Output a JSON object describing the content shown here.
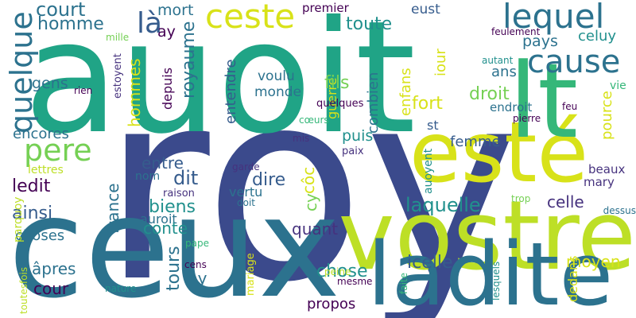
{
  "background": "#ffffff",
  "palette": {
    "navy": "#3b4a8c",
    "indigo": "#46327e",
    "purple": "#440154",
    "blue": "#365c8d",
    "steel": "#2c728e",
    "teal": "#21908d",
    "green": "#20a486",
    "seagreen": "#35b779",
    "lime": "#75d054",
    "yellowgreen": "#bddf26",
    "yellow": "#d8e219"
  },
  "words": [
    {
      "text": "roy",
      "color": "navy"
    },
    {
      "text": "auoit",
      "color": "green"
    },
    {
      "text": "ceux",
      "color": "steel"
    },
    {
      "text": "vostre",
      "color": "yellowgreen"
    },
    {
      "text": "ladite",
      "color": "steel"
    },
    {
      "text": "esté",
      "color": "yellow"
    },
    {
      "text": "lt",
      "color": "seagreen"
    },
    {
      "text": "ceste",
      "color": "yellow"
    },
    {
      "text": "lequel",
      "color": "steel"
    },
    {
      "text": "cause",
      "color": "steel"
    },
    {
      "text": "quelque",
      "color": "steel"
    },
    {
      "text": "pere",
      "color": "lime"
    },
    {
      "text": "là",
      "color": "blue"
    },
    {
      "text": "court",
      "color": "steel"
    },
    {
      "text": "homme",
      "color": "steel"
    },
    {
      "text": "mort",
      "color": "steel"
    },
    {
      "text": "toute",
      "color": "teal"
    },
    {
      "text": "ay",
      "color": "purple"
    },
    {
      "text": "royaume",
      "color": "steel"
    },
    {
      "text": "premier",
      "color": "purple"
    },
    {
      "text": "eust",
      "color": "blue"
    },
    {
      "text": "pays",
      "color": "steel"
    },
    {
      "text": "celuy",
      "color": "teal"
    },
    {
      "text": "mille",
      "color": "lime"
    },
    {
      "text": "feulement",
      "color": "purple"
    },
    {
      "text": "autant",
      "color": "teal"
    },
    {
      "text": "gens",
      "color": "steel"
    },
    {
      "text": "guerre",
      "color": "yellow"
    },
    {
      "text": "enfans",
      "color": "yellow"
    },
    {
      "text": "iour",
      "color": "yellow"
    },
    {
      "text": "ans",
      "color": "steel"
    },
    {
      "text": "entendre",
      "color": "blue"
    },
    {
      "text": "voulu",
      "color": "steel"
    },
    {
      "text": "monde",
      "color": "steel"
    },
    {
      "text": "depuis",
      "color": "purple"
    },
    {
      "text": "estoyent",
      "color": "indigo"
    },
    {
      "text": "rien",
      "color": "purple"
    },
    {
      "text": "hommes",
      "color": "yellow"
    },
    {
      "text": "fils",
      "color": "lime"
    },
    {
      "text": "combien",
      "color": "steel"
    },
    {
      "text": "fort",
      "color": "yellow"
    },
    {
      "text": "droit",
      "color": "lime"
    },
    {
      "text": "endroit",
      "color": "steel"
    },
    {
      "text": "feu",
      "color": "purple"
    },
    {
      "text": "vie",
      "color": "seagreen"
    },
    {
      "text": "quelques",
      "color": "purple"
    },
    {
      "text": "cœurs",
      "color": "seagreen"
    },
    {
      "text": "pierre",
      "color": "purple"
    },
    {
      "text": "pource",
      "color": "yellow"
    },
    {
      "text": "encores",
      "color": "steel"
    },
    {
      "text": "puis",
      "color": "teal"
    },
    {
      "text": "st",
      "color": "blue"
    },
    {
      "text": "mis",
      "color": "indigo"
    },
    {
      "text": "paix",
      "color": "indigo"
    },
    {
      "text": "femme",
      "color": "blue"
    },
    {
      "text": "lettres",
      "color": "yellowgreen"
    },
    {
      "text": "entre",
      "color": "blue"
    },
    {
      "text": "dit",
      "color": "blue"
    },
    {
      "text": "dire",
      "color": "blue"
    },
    {
      "text": "nom",
      "color": "steel"
    },
    {
      "text": "ledit",
      "color": "purple"
    },
    {
      "text": "ainsi",
      "color": "blue"
    },
    {
      "text": "france",
      "color": "steel"
    },
    {
      "text": "garde",
      "color": "indigo"
    },
    {
      "text": "vertu",
      "color": "steel"
    },
    {
      "text": "cy",
      "color": "lime"
    },
    {
      "text": "côc",
      "color": "yellow"
    },
    {
      "text": "auoyent",
      "color": "teal"
    },
    {
      "text": "laquelle",
      "color": "teal"
    },
    {
      "text": "celle",
      "color": "indigo"
    },
    {
      "text": "beaux",
      "color": "indigo"
    },
    {
      "text": "mary",
      "color": "indigo"
    },
    {
      "text": "raison",
      "color": "indigo"
    },
    {
      "text": "biens",
      "color": "teal"
    },
    {
      "text": "doit",
      "color": "steel"
    },
    {
      "text": "trop",
      "color": "lime"
    },
    {
      "text": "dessus",
      "color": "steel"
    },
    {
      "text": "choses",
      "color": "steel"
    },
    {
      "text": "auroit",
      "color": "steel"
    },
    {
      "text": "conte",
      "color": "teal"
    },
    {
      "text": "quant",
      "color": "indigo"
    },
    {
      "text": "parquoy",
      "color": "yellowgreen"
    },
    {
      "text": "pape",
      "color": "seagreen"
    },
    {
      "text": "tours",
      "color": "steel"
    },
    {
      "text": "cens",
      "color": "purple"
    },
    {
      "text": "icelle",
      "color": "blue"
    },
    {
      "text": "moyen",
      "color": "yellow"
    },
    {
      "text": "âpres",
      "color": "steel"
    },
    {
      "text": "ny",
      "color": "steel"
    },
    {
      "text": "mariage",
      "color": "yellow"
    },
    {
      "text": "chose",
      "color": "teal"
    },
    {
      "text": "dedans",
      "color": "yellow"
    },
    {
      "text": "toutesfois",
      "color": "yellowgreen"
    },
    {
      "text": "cour",
      "color": "purple"
    },
    {
      "text": "peine",
      "color": "yellowgreen"
    },
    {
      "text": "faite",
      "color": "seagreen"
    },
    {
      "text": "lesquels",
      "color": "teal"
    },
    {
      "text": "nature",
      "color": "teal"
    },
    {
      "text": "mesme",
      "color": "purple"
    },
    {
      "text": "propos",
      "color": "purple"
    }
  ]
}
